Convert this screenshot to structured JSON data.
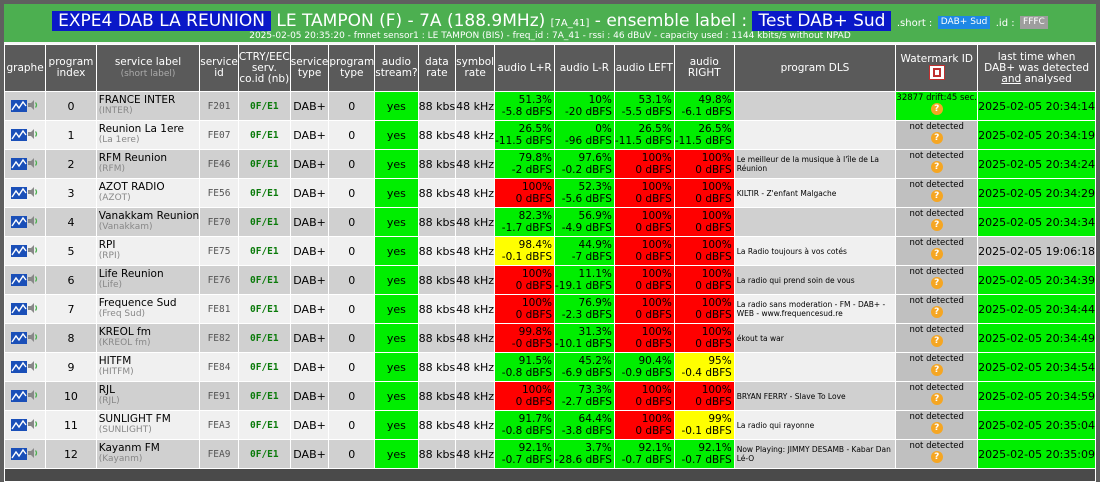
{
  "header": {
    "station_title": "EXPE4 DAB LA REUNION",
    "location": "LE TAMPON (F) - 7A (188.9MHz)",
    "channel_code": "[7A_41]",
    "ensemble_text": "- ensemble label :",
    "ensemble_label": "Test DAB+ Sud",
    "short_text": ".short :",
    "short_value": "DAB+ Sud",
    "id_text": ".id :",
    "id_value": "FFFC",
    "subtitle": "2025-02-05 20:35:20 - fmnet sensor1 : LE TAMPON (BIS) - freq_id : 7A_41 - rssi : 46 dBuV - capacity used : 1144 kbits/s without NPAD"
  },
  "columns": {
    "graphe": "graphe",
    "program_index": "program index",
    "service_label": "service label",
    "short_label": "(short label)",
    "service_id": "service id",
    "ctry_ecc": "CTRY/EEC serv. co.id (nb)",
    "service_type": "service type",
    "program_type": "program type",
    "audio_stream": "audio stream?",
    "data_rate": "data rate",
    "symbol_rate": "symbol rate",
    "audio_lr_sum": "audio L+R",
    "audio_lr_diff": "audio L-R",
    "audio_left": "audio LEFT",
    "audio_right": "audio RIGHT",
    "program_dls": "program DLS",
    "watermark": "Watermark ID",
    "last_time": "last time when DAB+ was detected and analysed",
    "last_time_l1": "last time when",
    "last_time_l2": "DAB+ was detected",
    "last_time_and": "and",
    "last_time_tail": "analysed"
  },
  "rows": [
    {
      "index": "0",
      "label": "FRANCE INTER",
      "short": "(INTER)",
      "sid": "F201",
      "ctry": "0F",
      "ecc": "E1",
      "stype": "DAB+",
      "ptype": "0",
      "audio": "yes",
      "drate": "88 kbs",
      "srate": "48 kHz",
      "lr": [
        "51.3%",
        "-5.8 dBFS",
        "green"
      ],
      "lmr": [
        "10%",
        "-20 dBFS",
        "green"
      ],
      "left": [
        "53.1%",
        "-5.5 dBFS",
        "green"
      ],
      "right": [
        "49.8%",
        "-6.1 dBFS",
        "green"
      ],
      "dls": "",
      "wm": "32877 drift:45 sec.",
      "wm_ok": true,
      "ts": "2025-02-05 20:34:14",
      "ts_ok": true
    },
    {
      "index": "1",
      "label": "Reunion La 1ere",
      "short": "(La 1ere)",
      "sid": "FE07",
      "ctry": "0F",
      "ecc": "E1",
      "stype": "DAB+",
      "ptype": "0",
      "audio": "yes",
      "drate": "88 kbs",
      "srate": "48 kHz",
      "lr": [
        "26.5%",
        "-11.5 dBFS",
        "green"
      ],
      "lmr": [
        "0%",
        "-96 dBFS",
        "green"
      ],
      "left": [
        "26.5%",
        "-11.5 dBFS",
        "green"
      ],
      "right": [
        "26.5%",
        "-11.5 dBFS",
        "green"
      ],
      "dls": "",
      "wm": "not detected",
      "wm_ok": false,
      "ts": "2025-02-05 20:34:19",
      "ts_ok": true
    },
    {
      "index": "2",
      "label": "RFM Reunion",
      "short": "(RFM)",
      "sid": "FE46",
      "ctry": "0F",
      "ecc": "E1",
      "stype": "DAB+",
      "ptype": "0",
      "audio": "yes",
      "drate": "88 kbs",
      "srate": "48 kHz",
      "lr": [
        "79.8%",
        "-2 dBFS",
        "green"
      ],
      "lmr": [
        "97.6%",
        "-0.2 dBFS",
        "green"
      ],
      "left": [
        "100%",
        "0 dBFS",
        "red"
      ],
      "right": [
        "100%",
        "0 dBFS",
        "red"
      ],
      "dls": "Le meilleur de la musique à l'île de La Réunion",
      "wm": "not detected",
      "wm_ok": false,
      "ts": "2025-02-05 20:34:24",
      "ts_ok": true
    },
    {
      "index": "3",
      "label": "AZOT RADIO",
      "short": "(AZOT)",
      "sid": "FE56",
      "ctry": "0F",
      "ecc": "E1",
      "stype": "DAB+",
      "ptype": "0",
      "audio": "yes",
      "drate": "88 kbs",
      "srate": "48 kHz",
      "lr": [
        "100%",
        "0 dBFS",
        "red"
      ],
      "lmr": [
        "52.3%",
        "-5.6 dBFS",
        "green"
      ],
      "left": [
        "100%",
        "0 dBFS",
        "red"
      ],
      "right": [
        "100%",
        "0 dBFS",
        "red"
      ],
      "dls": "KILTIR - Z'enfant Malgache",
      "wm": "not detected",
      "wm_ok": false,
      "ts": "2025-02-05 20:34:29",
      "ts_ok": true
    },
    {
      "index": "4",
      "label": "Vanakkam Reunion",
      "short": "(Vanakkam)",
      "sid": "FE70",
      "ctry": "0F",
      "ecc": "E1",
      "stype": "DAB+",
      "ptype": "0",
      "audio": "yes",
      "drate": "88 kbs",
      "srate": "48 kHz",
      "lr": [
        "82.3%",
        "-1.7 dBFS",
        "green"
      ],
      "lmr": [
        "56.9%",
        "-4.9 dBFS",
        "green"
      ],
      "left": [
        "100%",
        "0 dBFS",
        "red"
      ],
      "right": [
        "100%",
        "0 dBFS",
        "red"
      ],
      "dls": "",
      "wm": "not detected",
      "wm_ok": false,
      "ts": "2025-02-05 20:34:34",
      "ts_ok": true
    },
    {
      "index": "5",
      "label": "RPI",
      "short": "(RPI)",
      "sid": "FE75",
      "ctry": "0F",
      "ecc": "E1",
      "stype": "DAB+",
      "ptype": "0",
      "audio": "yes",
      "drate": "88 kbs",
      "srate": "48 kHz",
      "lr": [
        "98.4%",
        "-0.1 dBFS",
        "yellow"
      ],
      "lmr": [
        "44.9%",
        "-7 dBFS",
        "green"
      ],
      "left": [
        "100%",
        "0 dBFS",
        "red"
      ],
      "right": [
        "100%",
        "0 dBFS",
        "red"
      ],
      "dls": "La Radio toujours à vos cotés",
      "wm": "not detected",
      "wm_ok": false,
      "ts": "2025-02-05 19:06:18",
      "ts_ok": false
    },
    {
      "index": "6",
      "label": "Life Reunion",
      "short": "(Life)",
      "sid": "FE76",
      "ctry": "0F",
      "ecc": "E1",
      "stype": "DAB+",
      "ptype": "0",
      "audio": "yes",
      "drate": "88 kbs",
      "srate": "48 kHz",
      "lr": [
        "100%",
        "0 dBFS",
        "red"
      ],
      "lmr": [
        "11.1%",
        "-19.1 dBFS",
        "green"
      ],
      "left": [
        "100%",
        "0 dBFS",
        "red"
      ],
      "right": [
        "100%",
        "0 dBFS",
        "red"
      ],
      "dls": "La radio qui prend soin de vous",
      "wm": "not detected",
      "wm_ok": false,
      "ts": "2025-02-05 20:34:39",
      "ts_ok": true
    },
    {
      "index": "7",
      "label": "Frequence Sud",
      "short": "(Freq Sud)",
      "sid": "FE81",
      "ctry": "0F",
      "ecc": "E1",
      "stype": "DAB+",
      "ptype": "0",
      "audio": "yes",
      "drate": "88 kbs",
      "srate": "48 kHz",
      "lr": [
        "100%",
        "0 dBFS",
        "red"
      ],
      "lmr": [
        "76.9%",
        "-2.3 dBFS",
        "green"
      ],
      "left": [
        "100%",
        "0 dBFS",
        "red"
      ],
      "right": [
        "100%",
        "0 dBFS",
        "red"
      ],
      "dls": "La radio sans moderation - FM - DAB+ - WEB - www.frequencesud.re",
      "wm": "not detected",
      "wm_ok": false,
      "ts": "2025-02-05 20:34:44",
      "ts_ok": true
    },
    {
      "index": "8",
      "label": "KREOL fm",
      "short": "(KREOL fm)",
      "sid": "FE82",
      "ctry": "0F",
      "ecc": "E1",
      "stype": "DAB+",
      "ptype": "0",
      "audio": "yes",
      "drate": "88 kbs",
      "srate": "48 kHz",
      "lr": [
        "99.8%",
        "-0 dBFS",
        "red"
      ],
      "lmr": [
        "31.3%",
        "-10.1 dBFS",
        "green"
      ],
      "left": [
        "100%",
        "0 dBFS",
        "red"
      ],
      "right": [
        "100%",
        "0 dBFS",
        "red"
      ],
      "dls": "ékout ta war",
      "wm": "not detected",
      "wm_ok": false,
      "ts": "2025-02-05 20:34:49",
      "ts_ok": true
    },
    {
      "index": "9",
      "label": "HITFM",
      "short": "(HITFM)",
      "sid": "FE84",
      "ctry": "0F",
      "ecc": "E1",
      "stype": "DAB+",
      "ptype": "0",
      "audio": "yes",
      "drate": "88 kbs",
      "srate": "48 kHz",
      "lr": [
        "91.5%",
        "-0.8 dBFS",
        "green"
      ],
      "lmr": [
        "45.2%",
        "-6.9 dBFS",
        "green"
      ],
      "left": [
        "90.4%",
        "-0.9 dBFS",
        "green"
      ],
      "right": [
        "95%",
        "-0.4 dBFS",
        "yellow"
      ],
      "dls": "",
      "wm": "not detected",
      "wm_ok": false,
      "ts": "2025-02-05 20:34:54",
      "ts_ok": true
    },
    {
      "index": "10",
      "label": "RJL",
      "short": "(RJL)",
      "sid": "FE91",
      "ctry": "0F",
      "ecc": "E1",
      "stype": "DAB+",
      "ptype": "0",
      "audio": "yes",
      "drate": "88 kbs",
      "srate": "48 kHz",
      "lr": [
        "100%",
        "0 dBFS",
        "red"
      ],
      "lmr": [
        "73.3%",
        "-2.7 dBFS",
        "green"
      ],
      "left": [
        "100%",
        "0 dBFS",
        "red"
      ],
      "right": [
        "100%",
        "0 dBFS",
        "red"
      ],
      "dls": "BRYAN FERRY - Slave To Love",
      "wm": "not detected",
      "wm_ok": false,
      "ts": "2025-02-05 20:34:59",
      "ts_ok": true
    },
    {
      "index": "11",
      "label": "SUNLIGHT FM",
      "short": "(SUNLIGHT)",
      "sid": "FEA3",
      "ctry": "0F",
      "ecc": "E1",
      "stype": "DAB+",
      "ptype": "0",
      "audio": "yes",
      "drate": "88 kbs",
      "srate": "48 kHz",
      "lr": [
        "91.7%",
        "-0.8 dBFS",
        "green"
      ],
      "lmr": [
        "64.4%",
        "-3.8 dBFS",
        "green"
      ],
      "left": [
        "100%",
        "0 dBFS",
        "red"
      ],
      "right": [
        "99%",
        "-0.1 dBFS",
        "yellow"
      ],
      "dls": "La radio qui rayonne",
      "wm": "not detected",
      "wm_ok": false,
      "ts": "2025-02-05 20:35:04",
      "ts_ok": true
    },
    {
      "index": "12",
      "label": "Kayanm FM",
      "short": "(Kayanm)",
      "sid": "FEA9",
      "ctry": "0F",
      "ecc": "E1",
      "stype": "DAB+",
      "ptype": "0",
      "audio": "yes",
      "drate": "88 kbs",
      "srate": "48 kHz",
      "lr": [
        "92.1%",
        "-0.7 dBFS",
        "green"
      ],
      "lmr": [
        "3.7%",
        "-28.6 dBFS",
        "green"
      ],
      "left": [
        "92.1%",
        "-0.7 dBFS",
        "green"
      ],
      "right": [
        "92.1%",
        "-0.7 dBFS",
        "green"
      ],
      "dls": "Now Playing: JIMMY DESAMB - Kabar Dan Lé-O",
      "wm": "not detected",
      "wm_ok": false,
      "ts": "2025-02-05 20:35:09",
      "ts_ok": true
    }
  ],
  "icons": {
    "graph": "graph-chart-icon",
    "speaker": "speaker-icon",
    "help": "help-icon",
    "watermark": "watermark-icon"
  },
  "colors": {
    "header_bg": "#4caf50",
    "title_bg": "#0a18c8",
    "ok": "#00ee00",
    "clip": "#ff0000",
    "warn": "#ffff00"
  }
}
